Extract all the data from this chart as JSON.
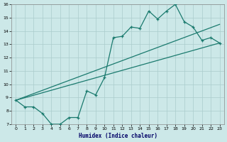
{
  "xlabel": "Humidex (Indice chaleur)",
  "bg_color": "#cce8e8",
  "grid_color": "#aacccc",
  "line_color": "#1a7a6e",
  "xlim": [
    -0.5,
    23.5
  ],
  "ylim": [
    7,
    16
  ],
  "xticks": [
    0,
    1,
    2,
    3,
    4,
    5,
    6,
    7,
    8,
    9,
    10,
    11,
    12,
    13,
    14,
    15,
    16,
    17,
    18,
    19,
    20,
    21,
    22,
    23
  ],
  "yticks": [
    7,
    8,
    9,
    10,
    11,
    12,
    13,
    14,
    15,
    16
  ],
  "line1_x": [
    0,
    1,
    2,
    3,
    4,
    5,
    6,
    7,
    8,
    9,
    10,
    11,
    12,
    13,
    14,
    15,
    16,
    17,
    18,
    19,
    20,
    21,
    22,
    23
  ],
  "line1_y": [
    8.8,
    8.3,
    8.3,
    7.8,
    7.0,
    7.0,
    7.5,
    7.5,
    9.5,
    9.2,
    10.5,
    13.5,
    13.6,
    14.3,
    14.2,
    15.5,
    14.9,
    15.5,
    16.0,
    14.7,
    14.3,
    13.3,
    13.5,
    13.1
  ],
  "line2_x": [
    0,
    23
  ],
  "line2_y": [
    8.8,
    13.1
  ],
  "line3_x": [
    0,
    23
  ],
  "line3_y": [
    8.8,
    14.5
  ]
}
